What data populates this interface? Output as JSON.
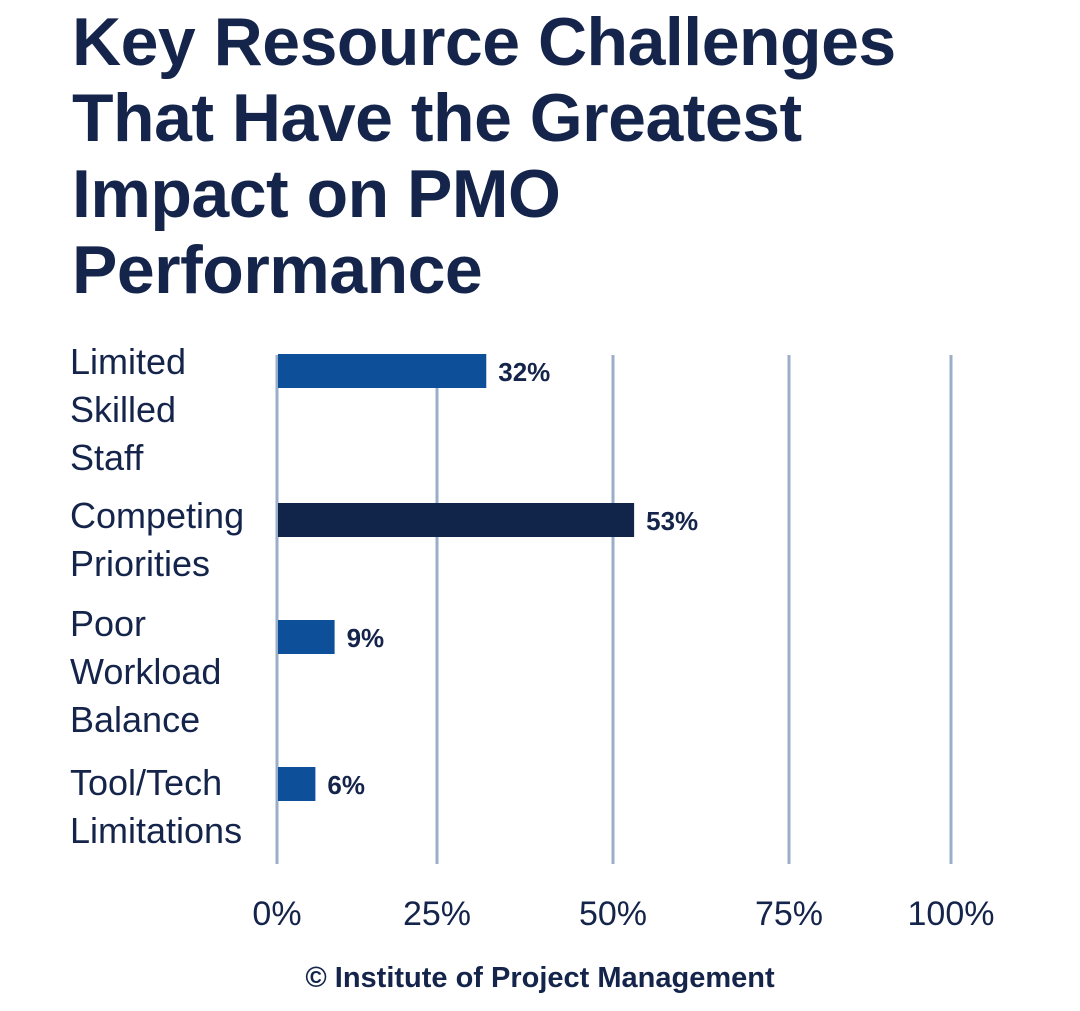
{
  "title_lines": [
    "Key Resource Challenges",
    "That Have the Greatest",
    "Impact on PMO",
    "Performance"
  ],
  "footer": "© Institute of Project Management",
  "colors": {
    "text": "#14244a",
    "bar": "#0d4f99",
    "bar_highlight": "#112449",
    "gridline": "#9aaec8"
  },
  "chart_data": {
    "type": "bar",
    "orientation": "horizontal",
    "title": "Key Resource Challenges That Have the Greatest Impact on PMO Performance",
    "categories": [
      "Limited Skilled Staff",
      "Competing Priorities",
      "Poor Workload Balance",
      "Tool/Tech Limitations"
    ],
    "category_label_lines": [
      [
        "Limited",
        "Skilled",
        "Staff"
      ],
      [
        "Competing",
        "Priorities"
      ],
      [
        "Poor",
        "Workload",
        "Balance"
      ],
      [
        "Tool/Tech",
        "Limitations"
      ]
    ],
    "values": [
      32,
      53,
      9,
      6
    ],
    "value_labels": [
      "32%",
      "53%",
      "9%",
      "6%"
    ],
    "highlight_index": 1,
    "xlim": [
      0,
      100
    ],
    "x_ticks": [
      0,
      25,
      50,
      75,
      100
    ],
    "x_tick_labels": [
      "0%",
      "25%",
      "50%",
      "75%",
      "100%"
    ],
    "grid": true,
    "legend": "none"
  }
}
